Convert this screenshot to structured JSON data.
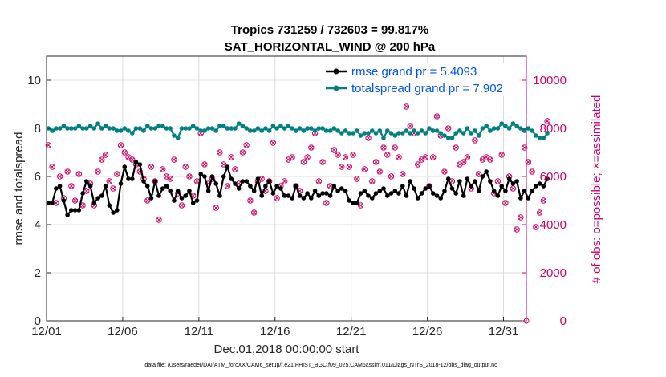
{
  "chart_data": {
    "type": "line",
    "title_line1": "Tropics 731259 / 732603 = 99.817%",
    "title_line2": "SAT_HORIZONTAL_WIND @ 200 hPa",
    "xlabel": "Dec.01,2018 00:00:00 start",
    "ylabel": "rmse and totalspread",
    "ylabel_right": "# of obs: o=possible; ×=assimilated",
    "footnote": "data file: /Users/raeder/DAI/ATM_forcXX/CAM6_setup/f.e21.FHIST_BGC.f09_025.CAM6assim.011/Diags_NTrS_2018-12/obs_diag_output.nc",
    "x_range_days": [
      0,
      31.5
    ],
    "ylim": [
      0,
      11
    ],
    "ylim_right": [
      0,
      11000
    ],
    "xticks": [
      {
        "day": 0,
        "label": "12/01"
      },
      {
        "day": 5,
        "label": "12/06"
      },
      {
        "day": 10,
        "label": "12/11"
      },
      {
        "day": 15,
        "label": "12/16"
      },
      {
        "day": 20,
        "label": "12/21"
      },
      {
        "day": 25,
        "label": "12/26"
      },
      {
        "day": 30,
        "label": "12/31"
      }
    ],
    "yticks": [
      0,
      2,
      4,
      6,
      8,
      10
    ],
    "yticks_right": [
      0,
      2000,
      4000,
      6000,
      8000,
      10000
    ],
    "colors": {
      "rmse": "#000000",
      "spread": "#008080",
      "obs": "#cc0066",
      "grid": "#dcdcdc",
      "legend_text": "#0055ee"
    },
    "series": [
      {
        "name": "rmse grand pr = 5.4093",
        "key": "rmse",
        "values": [
          4.9,
          4.9,
          5.5,
          5.6,
          5.0,
          4.4,
          4.6,
          4.6,
          4.6,
          5.3,
          5.8,
          5.6,
          4.9,
          5.1,
          5.2,
          5.6,
          4.8,
          4.5,
          4.6,
          5.7,
          6.4,
          5.9,
          5.9,
          6.6,
          6.5,
          5.8,
          5.6,
          5.1,
          5.8,
          5.2,
          5.5,
          5.6,
          5.4,
          5.0,
          5.4,
          5.1,
          5.2,
          5.4,
          4.9,
          5.0,
          6.1,
          6.0,
          5.4,
          6.0,
          5.7,
          5.2,
          6.0,
          6.4,
          5.9,
          5.7,
          5.5,
          5.8,
          5.8,
          5.6,
          5.4,
          5.9,
          5.2,
          5.6,
          5.8,
          5.3,
          5.6,
          5.5,
          5.2,
          5.2,
          5.1,
          5.6,
          5.2,
          5.1,
          5.3,
          5.1,
          5.4,
          5.2,
          5.3,
          5.3,
          5.2,
          5.6,
          5.4,
          5.5,
          5.4,
          5.0,
          4.9,
          4.9,
          5.3,
          5.4,
          5.2,
          5.1,
          5.3,
          5.4,
          5.5,
          5.2,
          5.3,
          5.4,
          5.3,
          5.6,
          5.2,
          5.8,
          5.5,
          5.1,
          5.3,
          5.5,
          5.6,
          5.3,
          5.2,
          5.1,
          5.4,
          5.9,
          5.5,
          5.3,
          5.8,
          5.2,
          5.9,
          5.6,
          5.8,
          5.4,
          6.0,
          6.2,
          5.8,
          5.4,
          5.2,
          5.6,
          5.4,
          5.9,
          5.7,
          5.8,
          5.1,
          5.4,
          5.1,
          5.4,
          5.6,
          5.7,
          5.6,
          5.9
        ]
      },
      {
        "name": "totalspread grand pr = 7.902",
        "key": "spread",
        "values": [
          8.0,
          7.9,
          8.0,
          8.0,
          8.1,
          8.0,
          8.0,
          8.0,
          8.1,
          8.0,
          8.0,
          8.1,
          8.0,
          8.2,
          8.0,
          8.1,
          8.0,
          8.0,
          7.9,
          7.9,
          8.0,
          7.9,
          7.8,
          8.0,
          8.0,
          7.9,
          8.1,
          8.0,
          8.0,
          8.1,
          8.1,
          8.0,
          8.0,
          7.7,
          7.6,
          8.0,
          8.0,
          8.0,
          8.1,
          8.0,
          7.9,
          7.9,
          8.0,
          8.0,
          7.9,
          8.1,
          8.1,
          8.0,
          8.0,
          8.0,
          8.2,
          8.1,
          8.0,
          7.9,
          7.9,
          8.0,
          7.9,
          8.0,
          7.9,
          8.1,
          8.0,
          8.1,
          8.0,
          8.1,
          8.0,
          7.9,
          8.0,
          7.9,
          8.0,
          8.0,
          7.9,
          8.0,
          8.0,
          7.9,
          7.9,
          8.0,
          7.9,
          7.8,
          7.9,
          7.8,
          7.8,
          7.9,
          7.7,
          7.8,
          7.8,
          7.9,
          7.8,
          7.9,
          7.6,
          7.9,
          7.8,
          7.7,
          7.8,
          7.8,
          7.9,
          7.8,
          7.9,
          7.8,
          7.9,
          7.8,
          8.0,
          7.9,
          7.9,
          7.8,
          7.7,
          7.6,
          7.6,
          7.8,
          7.9,
          7.8,
          8.0,
          7.8,
          7.9,
          7.7,
          8.0,
          8.1,
          7.9,
          8.0,
          8.0,
          8.2,
          8.1,
          8.0,
          8.2,
          8.1,
          8.0,
          7.9,
          8.0,
          7.9,
          7.7,
          7.6,
          7.6,
          7.8
        ]
      }
    ],
    "obs_counts": [
      7300,
      6400,
      4900,
      6000,
      5100,
      6200,
      5600,
      5000,
      6100,
      4800,
      5400,
      5700,
      4800,
      6200,
      6700,
      6900,
      5800,
      5500,
      6100,
      7300,
      7000,
      6800,
      6700,
      6500,
      6200,
      5900,
      5000,
      6400,
      5800,
      4200,
      6300,
      6000,
      5900,
      6700,
      5300,
      4800,
      6400,
      6000,
      5200,
      5800,
      7800,
      6500,
      5700,
      5900,
      4700,
      7000,
      6500,
      5600,
      6800,
      6300,
      5700,
      7000,
      7300,
      5000,
      4500,
      5800,
      5900,
      5400,
      5800,
      7400,
      5100,
      5600,
      5800,
      6700,
      6800,
      5600,
      5400,
      6600,
      6800,
      7200,
      7800,
      5800,
      6600,
      4900,
      5600,
      7100,
      6900,
      6400,
      6800,
      6400,
      6900,
      5900,
      4800,
      6300,
      7600,
      5800,
      6600,
      6200,
      7200,
      6900,
      6000,
      7200,
      6800,
      6100,
      8900,
      8100,
      7800,
      6500,
      6700,
      6800,
      5600,
      6800,
      8500,
      7700,
      6200,
      8000,
      5800,
      7200,
      6500,
      6600,
      6800,
      5500,
      7500,
      6100,
      6700,
      6800,
      6700,
      5300,
      5800,
      6900,
      4900,
      6000,
      5500,
      3800,
      4300,
      7200,
      6600,
      6200,
      3900,
      4500,
      5000,
      8300
    ]
  }
}
